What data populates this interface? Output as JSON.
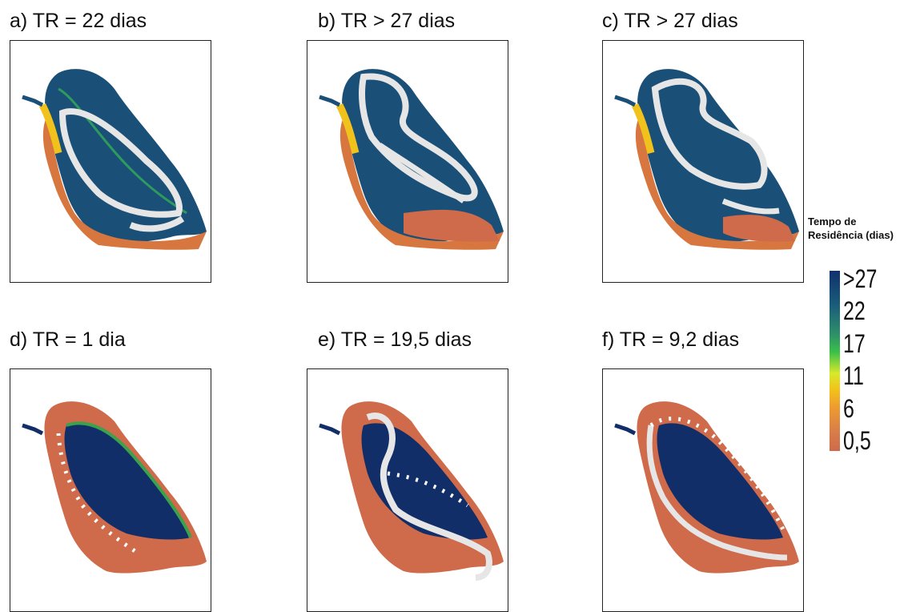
{
  "panels": [
    {
      "title": "a) TR = 22 dias"
    },
    {
      "title": "b) TR > 27 dias"
    },
    {
      "title": "c) TR > 27 dias"
    },
    {
      "title": "d) TR = 1 dia"
    },
    {
      "title": "e) TR = 19,5 dias"
    },
    {
      "title": "f) TR = 9,2 dias"
    }
  ],
  "legend": {
    "title_line1": "Tempo de",
    "title_line2": "Residência (dias)",
    "ticks": [
      ">27",
      "22",
      "17",
      "11",
      "6",
      "0,5"
    ],
    "colors": [
      "#10306e",
      "#1b5f7a",
      "#2e8f6a",
      "#39c04a",
      "#d8e82a",
      "#f3c21a",
      "#ee9a30",
      "#cf6a4a"
    ]
  }
}
